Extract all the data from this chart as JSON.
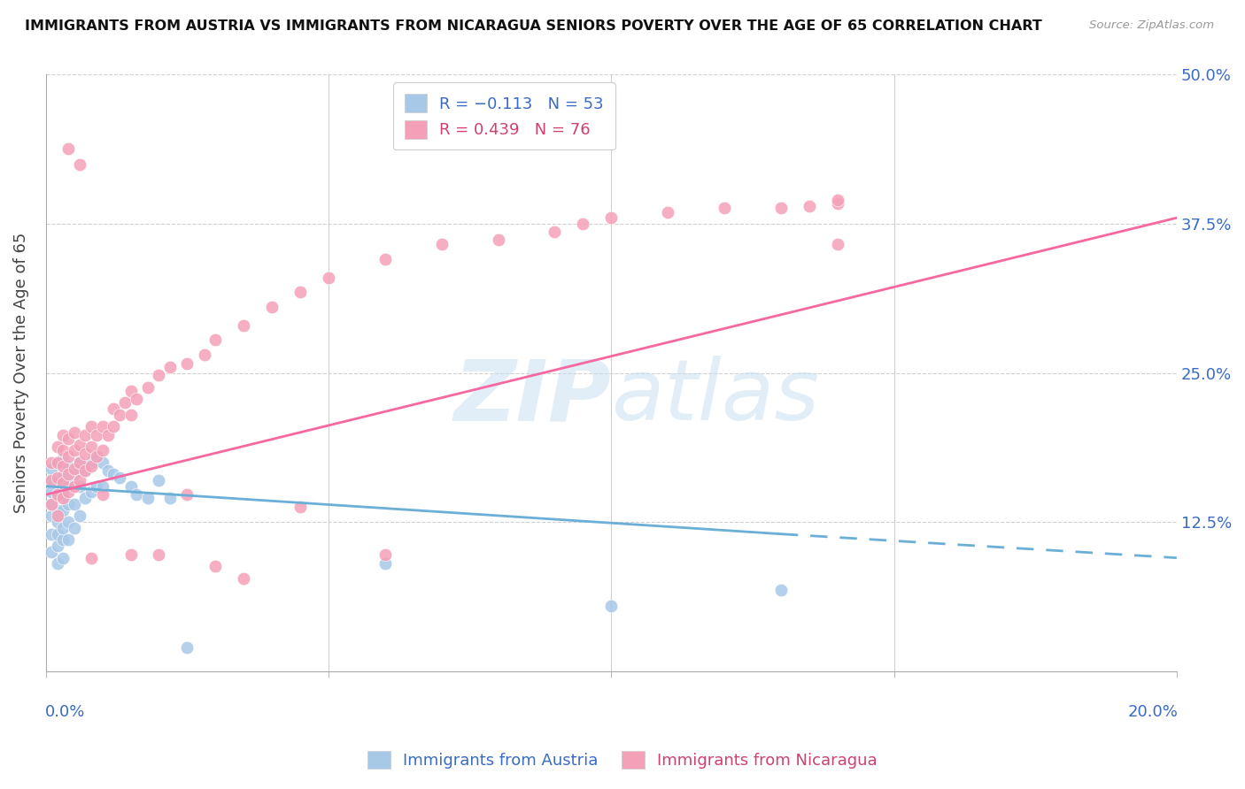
{
  "title": "IMMIGRANTS FROM AUSTRIA VS IMMIGRANTS FROM NICARAGUA SENIORS POVERTY OVER THE AGE OF 65 CORRELATION CHART",
  "source": "Source: ZipAtlas.com",
  "ylabel": "Seniors Poverty Over the Age of 65",
  "yticks": [
    0.0,
    0.125,
    0.25,
    0.375,
    0.5
  ],
  "ytick_labels": [
    "",
    "12.5%",
    "25.0%",
    "37.5%",
    "50.0%"
  ],
  "xlim": [
    0.0,
    0.2
  ],
  "ylim": [
    0.0,
    0.5
  ],
  "austria_color": "#a8c8e8",
  "nicaragua_color": "#f4a0b8",
  "austria_line_color": "#6baed6",
  "nicaragua_line_color": "#f768a1",
  "austria_x": [
    0.001,
    0.001,
    0.001,
    0.001,
    0.001,
    0.001,
    0.001,
    0.002,
    0.002,
    0.002,
    0.002,
    0.002,
    0.002,
    0.002,
    0.002,
    0.003,
    0.003,
    0.003,
    0.003,
    0.003,
    0.003,
    0.003,
    0.004,
    0.004,
    0.004,
    0.004,
    0.004,
    0.005,
    0.005,
    0.005,
    0.006,
    0.006,
    0.006,
    0.007,
    0.007,
    0.008,
    0.008,
    0.009,
    0.009,
    0.01,
    0.01,
    0.011,
    0.012,
    0.013,
    0.015,
    0.016,
    0.018,
    0.02,
    0.022,
    0.025,
    0.06,
    0.1,
    0.13
  ],
  "austria_y": [
    0.1,
    0.115,
    0.13,
    0.14,
    0.15,
    0.16,
    0.17,
    0.09,
    0.105,
    0.115,
    0.125,
    0.135,
    0.148,
    0.16,
    0.175,
    0.095,
    0.11,
    0.12,
    0.135,
    0.148,
    0.163,
    0.178,
    0.11,
    0.125,
    0.14,
    0.158,
    0.172,
    0.12,
    0.14,
    0.165,
    0.13,
    0.155,
    0.175,
    0.145,
    0.168,
    0.15,
    0.175,
    0.155,
    0.18,
    0.155,
    0.175,
    0.168,
    0.165,
    0.162,
    0.155,
    0.148,
    0.145,
    0.16,
    0.145,
    0.02,
    0.09,
    0.055,
    0.068
  ],
  "nicaragua_x": [
    0.001,
    0.001,
    0.001,
    0.002,
    0.002,
    0.002,
    0.002,
    0.002,
    0.003,
    0.003,
    0.003,
    0.003,
    0.003,
    0.004,
    0.004,
    0.004,
    0.004,
    0.005,
    0.005,
    0.005,
    0.005,
    0.006,
    0.006,
    0.006,
    0.007,
    0.007,
    0.007,
    0.008,
    0.008,
    0.008,
    0.009,
    0.009,
    0.01,
    0.01,
    0.011,
    0.012,
    0.012,
    0.013,
    0.014,
    0.015,
    0.015,
    0.016,
    0.018,
    0.02,
    0.022,
    0.025,
    0.028,
    0.03,
    0.035,
    0.04,
    0.045,
    0.05,
    0.06,
    0.07,
    0.08,
    0.09,
    0.095,
    0.1,
    0.11,
    0.12,
    0.13,
    0.135,
    0.14,
    0.14,
    0.045,
    0.025,
    0.03,
    0.035,
    0.06,
    0.02,
    0.015,
    0.01,
    0.008,
    0.006,
    0.004,
    0.14
  ],
  "nicaragua_y": [
    0.14,
    0.16,
    0.175,
    0.13,
    0.148,
    0.162,
    0.175,
    0.188,
    0.145,
    0.158,
    0.172,
    0.185,
    0.198,
    0.15,
    0.165,
    0.18,
    0.195,
    0.155,
    0.17,
    0.185,
    0.2,
    0.16,
    0.175,
    0.19,
    0.168,
    0.182,
    0.198,
    0.172,
    0.188,
    0.205,
    0.18,
    0.198,
    0.185,
    0.205,
    0.198,
    0.205,
    0.22,
    0.215,
    0.225,
    0.215,
    0.235,
    0.228,
    0.238,
    0.248,
    0.255,
    0.258,
    0.265,
    0.278,
    0.29,
    0.305,
    0.318,
    0.33,
    0.345,
    0.358,
    0.362,
    0.368,
    0.375,
    0.38,
    0.385,
    0.388,
    0.388,
    0.39,
    0.392,
    0.358,
    0.138,
    0.148,
    0.088,
    0.078,
    0.098,
    0.098,
    0.098,
    0.148,
    0.095,
    0.425,
    0.438,
    0.395
  ],
  "austria_line_x0": 0.0,
  "austria_line_x_split": 0.13,
  "austria_line_x1": 0.2,
  "austria_line_y0": 0.155,
  "austria_line_y_split": 0.115,
  "austria_line_y1": 0.095,
  "nicaragua_line_x0": 0.0,
  "nicaragua_line_x1": 0.2,
  "nicaragua_line_y0": 0.148,
  "nicaragua_line_y1": 0.38
}
